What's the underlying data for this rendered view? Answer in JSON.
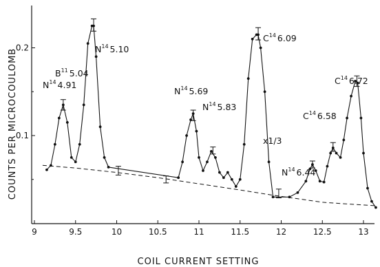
{
  "chart_data": {
    "type": "line",
    "xlabel": "COIL CURRENT SETTING",
    "ylabel": "COUNTS PER MICROCOULOMB",
    "xlim": [
      9,
      13.2
    ],
    "ylim": [
      0,
      0.24
    ],
    "xticks": [
      "9",
      "9.5",
      "10",
      "10.5",
      "11",
      "11.5",
      "12",
      "12.5",
      "13"
    ],
    "yticks": [
      "0.1",
      "0.2"
    ],
    "grid": false,
    "series": [
      {
        "style": "solid-with-points",
        "x": [
          9.15,
          9.2,
          9.25,
          9.3,
          9.35,
          9.4,
          9.45,
          9.5,
          9.55,
          9.6,
          9.65,
          9.7,
          9.72,
          9.75,
          9.8,
          9.85,
          9.9,
          10.75,
          10.8,
          10.85,
          10.9,
          10.93,
          10.97,
          11.0,
          11.05,
          11.1,
          11.15,
          11.2,
          11.25,
          11.3,
          11.35,
          11.4,
          11.45,
          11.5,
          11.55,
          11.6,
          11.65,
          11.7,
          11.72,
          11.75,
          11.8,
          11.85,
          11.9,
          12.1,
          12.2,
          12.3,
          12.35,
          12.38,
          12.42,
          12.47,
          12.52,
          12.56,
          12.6,
          12.63,
          12.67,
          12.72,
          12.76,
          12.8,
          12.85,
          12.9,
          12.93,
          12.97,
          13.0,
          13.05,
          13.1,
          13.15
        ],
        "y": [
          0.061,
          0.066,
          0.09,
          0.12,
          0.135,
          0.115,
          0.075,
          0.07,
          0.09,
          0.135,
          0.205,
          0.225,
          0.225,
          0.19,
          0.11,
          0.075,
          0.064,
          0.052,
          0.07,
          0.1,
          0.118,
          0.125,
          0.105,
          0.075,
          0.06,
          0.07,
          0.082,
          0.075,
          0.058,
          0.052,
          0.058,
          0.05,
          0.042,
          0.05,
          0.09,
          0.165,
          0.21,
          0.215,
          0.215,
          0.2,
          0.15,
          0.07,
          0.03,
          0.03,
          0.035,
          0.048,
          0.062,
          0.067,
          0.06,
          0.048,
          0.047,
          0.065,
          0.08,
          0.086,
          0.08,
          0.075,
          0.095,
          0.12,
          0.145,
          0.162,
          0.16,
          0.12,
          0.08,
          0.04,
          0.025,
          0.018
        ]
      },
      {
        "style": "dashed-background",
        "x": [
          9.1,
          9.5,
          10.0,
          10.5,
          11.0,
          11.5,
          11.9,
          12.2,
          12.5,
          12.8,
          13.15
        ],
        "y": [
          0.066,
          0.063,
          0.058,
          0.052,
          0.045,
          0.038,
          0.032,
          0.028,
          0.024,
          0.022,
          0.02
        ]
      }
    ],
    "errorbars": [
      {
        "x": 9.35,
        "y": 0.135,
        "err": 0.006
      },
      {
        "x": 9.72,
        "y": 0.226,
        "err": 0.007
      },
      {
        "x": 10.02,
        "y": 0.06,
        "err": 0.005
      },
      {
        "x": 10.6,
        "y": 0.05,
        "err": 0.004
      },
      {
        "x": 10.93,
        "y": 0.123,
        "err": 0.006
      },
      {
        "x": 11.17,
        "y": 0.083,
        "err": 0.004
      },
      {
        "x": 11.72,
        "y": 0.216,
        "err": 0.007
      },
      {
        "x": 11.97,
        "y": 0.034,
        "err": 0.005
      },
      {
        "x": 12.38,
        "y": 0.067,
        "err": 0.004
      },
      {
        "x": 12.63,
        "y": 0.087,
        "err": 0.005
      },
      {
        "x": 12.92,
        "y": 0.162,
        "err": 0.006
      }
    ],
    "annotations": [
      {
        "sup": "14",
        "sym": "N",
        "val": "4.91"
      },
      {
        "sup": "11",
        "sym": "B",
        "val": "5.04"
      },
      {
        "sup": "14",
        "sym": "N",
        "val": "5.10"
      },
      {
        "sup": "14",
        "sym": "N",
        "val": "5.69"
      },
      {
        "sup": "14",
        "sym": "N",
        "val": "5.83"
      },
      {
        "sup": "14",
        "sym": "C",
        "val": "6.09"
      },
      {
        "sup": "",
        "sym": "x1/3",
        "val": ""
      },
      {
        "sup": "14",
        "sym": "N",
        "val": "6.44"
      },
      {
        "sup": "14",
        "sym": "C",
        "val": "6.58"
      },
      {
        "sup": "14",
        "sym": "C",
        "val": "6.72"
      }
    ]
  }
}
